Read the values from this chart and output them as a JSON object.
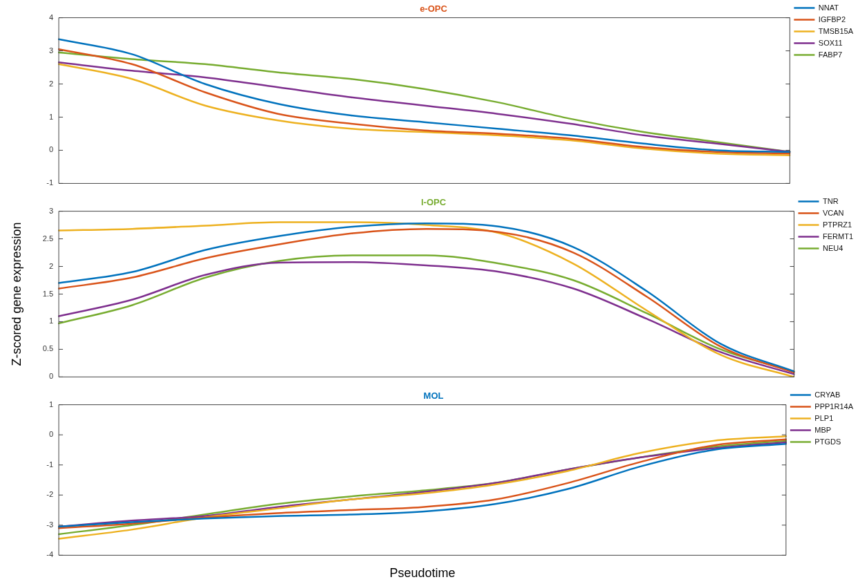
{
  "chart_data": [
    {
      "type": "line",
      "title": "e-OPC",
      "categories": [
        null,
        null,
        null,
        null,
        null,
        null,
        null,
        null,
        null,
        null,
        null
      ],
      "ylim": [
        -1,
        4
      ],
      "yticks": [
        -1,
        0,
        1,
        2,
        3,
        4
      ],
      "tick_labels": "y",
      "legend": "top right",
      "grid": false,
      "marker": "none",
      "line_style": "solid",
      "series": [
        {
          "name": "NNAT",
          "color": "#0072bd",
          "values": [
            3.35,
            2.9,
            2.0,
            1.4,
            1.05,
            0.85,
            0.65,
            0.45,
            0.2,
            0.0,
            -0.05
          ]
        },
        {
          "name": "IGFBP2",
          "color": "#d95319",
          "values": [
            3.05,
            2.6,
            1.75,
            1.1,
            0.8,
            0.6,
            0.5,
            0.35,
            0.1,
            -0.05,
            -0.1
          ]
        },
        {
          "name": "TMSB15A",
          "color": "#edb120",
          "values": [
            2.6,
            2.15,
            1.35,
            0.9,
            0.65,
            0.55,
            0.45,
            0.3,
            0.05,
            -0.1,
            -0.15
          ]
        },
        {
          "name": "SOX11",
          "color": "#7e2f8e",
          "values": [
            2.65,
            2.4,
            2.2,
            1.9,
            1.6,
            1.35,
            1.1,
            0.8,
            0.45,
            0.2,
            -0.05
          ]
        },
        {
          "name": "FABP7",
          "color": "#77ac30",
          "values": [
            2.95,
            2.75,
            2.6,
            2.35,
            2.15,
            1.85,
            1.45,
            0.95,
            0.55,
            0.25,
            -0.05
          ]
        }
      ]
    },
    {
      "type": "line",
      "title": "l-OPC",
      "ylabel": "Z-scored gene expression",
      "categories": [
        null,
        null,
        null,
        null,
        null,
        null,
        null,
        null,
        null,
        null,
        null
      ],
      "ylim": [
        0,
        3
      ],
      "yticks": [
        0,
        0.5,
        1,
        1.5,
        2,
        2.5,
        3
      ],
      "tick_labels": "y",
      "legend": "top right",
      "grid": false,
      "marker": "none",
      "line_style": "solid",
      "series": [
        {
          "name": "TNR",
          "color": "#0072bd",
          "values": [
            1.7,
            1.9,
            2.3,
            2.55,
            2.72,
            2.78,
            2.72,
            2.35,
            1.55,
            0.6,
            0.1
          ]
        },
        {
          "name": "VCAN",
          "color": "#d95319",
          "values": [
            1.6,
            1.8,
            2.15,
            2.4,
            2.6,
            2.68,
            2.62,
            2.25,
            1.45,
            0.55,
            0.08
          ]
        },
        {
          "name": "PTPRZ1",
          "color": "#edb120",
          "values": [
            2.65,
            2.68,
            2.74,
            2.8,
            2.8,
            2.75,
            2.6,
            2.05,
            1.2,
            0.4,
            0
          ]
        },
        {
          "name": "FERMT1",
          "color": "#7e2f8e",
          "values": [
            1.1,
            1.4,
            1.85,
            2.07,
            2.08,
            2.02,
            1.9,
            1.6,
            1.05,
            0.45,
            0.05
          ]
        },
        {
          "name": "NEU4",
          "color": "#77ac30",
          "values": [
            0.97,
            1.3,
            1.8,
            2.1,
            2.2,
            2.2,
            2.05,
            1.75,
            1.15,
            0.5,
            0.1
          ]
        }
      ]
    },
    {
      "type": "line",
      "title": "MOL",
      "xlabel": "Pseudotime",
      "categories": [
        null,
        null,
        null,
        null,
        null,
        null,
        null,
        null,
        null,
        null,
        null
      ],
      "ylim": [
        -4,
        1
      ],
      "yticks": [
        -4,
        -3,
        -2,
        -1,
        0,
        1
      ],
      "tick_labels": "y",
      "legend": "top right",
      "grid": false,
      "marker": "none",
      "line_style": "solid",
      "series": [
        {
          "name": "CRYAB",
          "color": "#0072bd",
          "values": [
            -3.05,
            -2.9,
            -2.78,
            -2.7,
            -2.65,
            -2.55,
            -2.3,
            -1.8,
            -1.05,
            -0.5,
            -0.3
          ]
        },
        {
          "name": "PPP1R14A",
          "color": "#d95319",
          "values": [
            -3.1,
            -2.95,
            -2.75,
            -2.6,
            -2.5,
            -2.4,
            -2.15,
            -1.6,
            -0.9,
            -0.35,
            -0.15
          ]
        },
        {
          "name": "PLP1",
          "color": "#edb120",
          "values": [
            -3.45,
            -3.15,
            -2.75,
            -2.45,
            -2.15,
            -1.95,
            -1.65,
            -1.2,
            -0.6,
            -0.2,
            -0.05
          ]
        },
        {
          "name": "MBP",
          "color": "#7e2f8e",
          "values": [
            -3.05,
            -2.85,
            -2.7,
            -2.4,
            -2.15,
            -1.9,
            -1.6,
            -1.15,
            -0.75,
            -0.45,
            -0.25
          ]
        },
        {
          "name": "PTGDS",
          "color": "#77ac30",
          "values": [
            -3.3,
            -3.0,
            -2.65,
            -2.3,
            -2.05,
            -1.85,
            -1.6,
            -1.15,
            -0.75,
            -0.4,
            -0.2
          ]
        }
      ]
    }
  ]
}
